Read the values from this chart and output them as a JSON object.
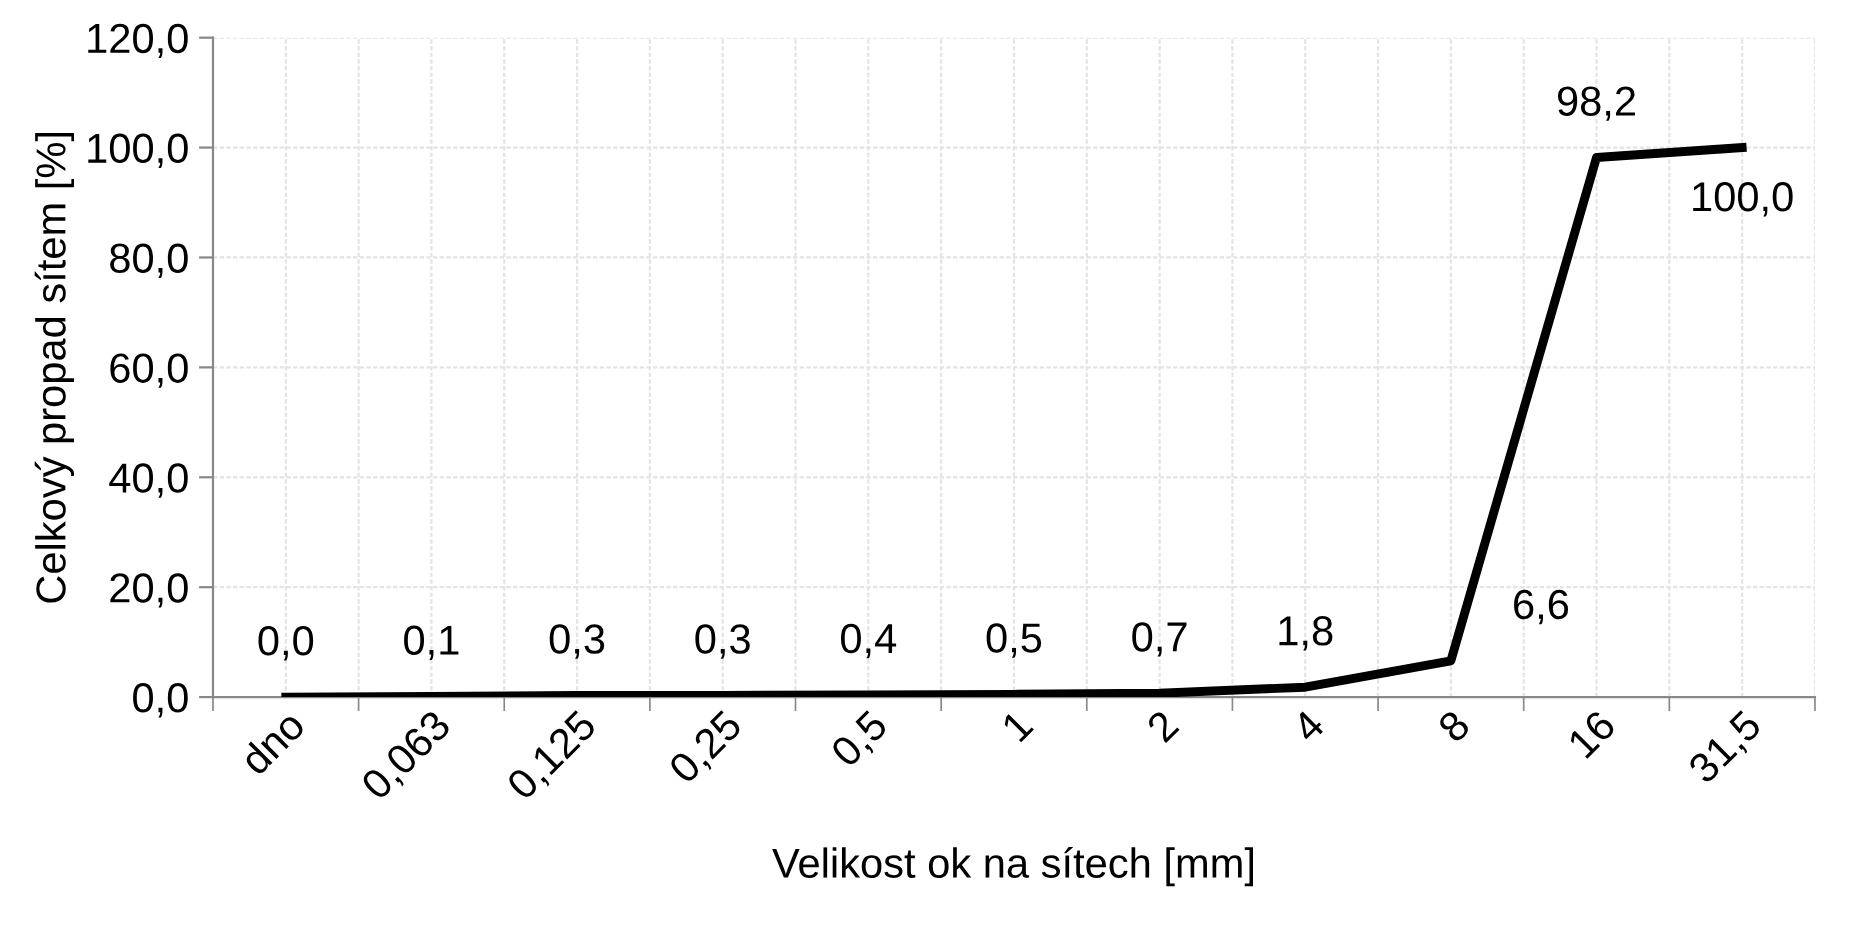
{
  "chart_data": {
    "type": "line",
    "xlabel": "Velikost ok na sítech [mm]",
    "ylabel": "Celkový propad sítem [%]",
    "categories": [
      "dno",
      "0,063",
      "0,125",
      "0,25",
      "0,5",
      "1",
      "2",
      "4",
      "8",
      "16",
      "31,5"
    ],
    "series": [
      {
        "color": "#000000",
        "values": [
          0.0,
          0.1,
          0.3,
          0.3,
          0.4,
          0.5,
          0.7,
          1.8,
          6.6,
          98.2,
          100.0
        ],
        "value_labels": [
          "0,0",
          "0,1",
          "0,3",
          "0,3",
          "0,4",
          "0,5",
          "0,7",
          "1,8",
          "6,6",
          "98,2",
          "100,0"
        ]
      }
    ],
    "ylim": [
      0,
      120
    ],
    "yticks": [
      {
        "value": 0,
        "label": "0,0"
      },
      {
        "value": 20,
        "label": "20,0"
      },
      {
        "value": 40,
        "label": "40,0"
      },
      {
        "value": 60,
        "label": "60,0"
      },
      {
        "value": 80,
        "label": "80,0"
      },
      {
        "value": 100,
        "label": "100,0"
      },
      {
        "value": 120,
        "label": "120,0"
      }
    ],
    "grid": true,
    "marker": "none",
    "line_style": "solid",
    "legend": false
  }
}
